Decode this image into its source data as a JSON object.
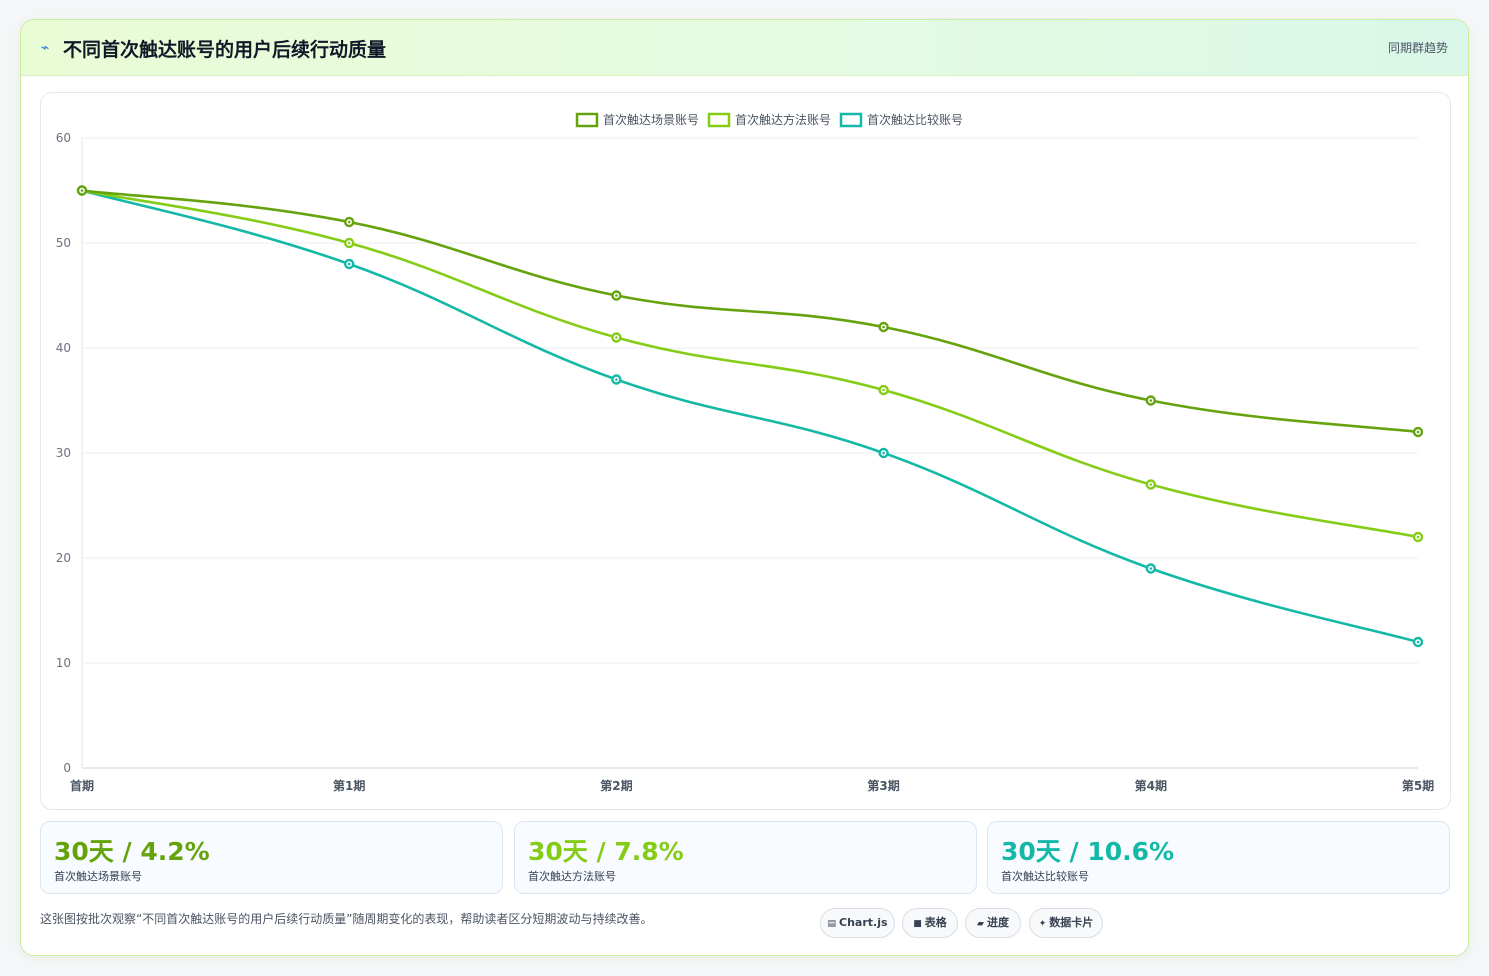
{
  "header": {
    "icon": "chart-trend-icon",
    "title": "不同首次触达账号的用户后续行动质量",
    "tag": "同期群趋势"
  },
  "chart_data": {
    "type": "line",
    "categories": [
      "首期",
      "第1期",
      "第2期",
      "第3期",
      "第4期",
      "第5期"
    ],
    "ylim": [
      0,
      60
    ],
    "yticks": [
      0,
      10,
      20,
      30,
      40,
      50,
      60
    ],
    "grid": true,
    "legend_position": "top-center",
    "series": [
      {
        "name": "首次触达场景账号",
        "color": "#65a30d",
        "values": [
          55,
          52,
          45,
          42,
          35,
          32
        ]
      },
      {
        "name": "首次触达方法账号",
        "color": "#84cc16",
        "values": [
          55,
          50,
          41,
          36,
          27,
          22
        ]
      },
      {
        "name": "首次触达比较账号",
        "color": "#14b8a6",
        "values": [
          55,
          48,
          37,
          30,
          19,
          12
        ]
      }
    ]
  },
  "stats": [
    {
      "value": "30天 / 4.2%",
      "label": "首次触达场景账号",
      "color": "#65a30d"
    },
    {
      "value": "30天 / 7.8%",
      "label": "首次触达方法账号",
      "color": "#84cc16"
    },
    {
      "value": "30天 / 10.6%",
      "label": "首次触达比较账号",
      "color": "#14b8a6"
    }
  ],
  "footnote": "这张图按批次观察“不同首次触达账号的用户后续行动质量”随周期变化的表现，帮助读者区分短期波动与持续改善。",
  "pills": [
    {
      "icon": "chart-icon",
      "glyph": "▤",
      "label": "Chart.js"
    },
    {
      "icon": "table-icon",
      "glyph": "■",
      "label": "表格"
    },
    {
      "icon": "progress-icon",
      "glyph": "▰",
      "label": "进度"
    },
    {
      "icon": "card-icon",
      "glyph": "✦",
      "label": "数据卡片"
    }
  ]
}
